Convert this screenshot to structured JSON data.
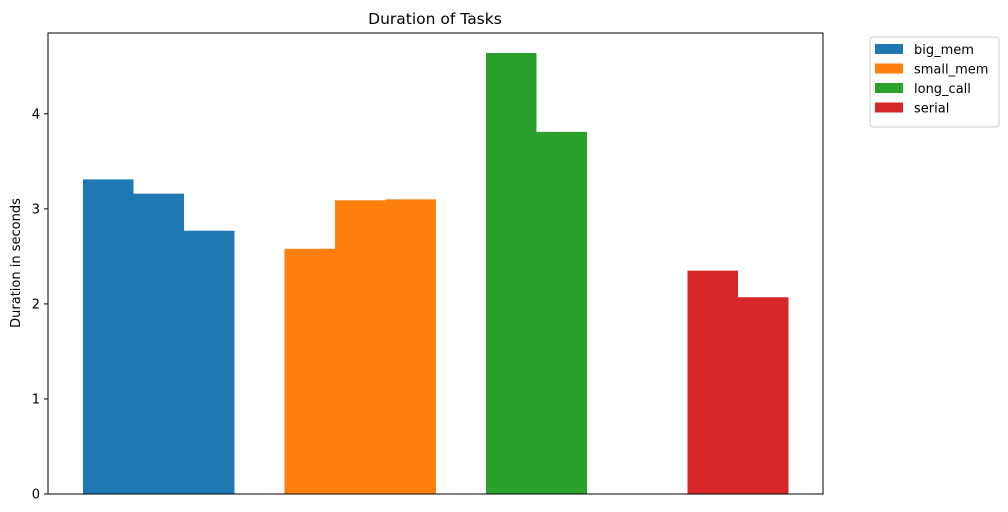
{
  "chart_data": {
    "type": "bar",
    "title": "Duration of Tasks",
    "xlabel": "",
    "ylabel": "Duration in seconds",
    "ylim": [
      0,
      4.85
    ],
    "yticks": [
      0,
      1,
      2,
      3,
      4
    ],
    "grid": false,
    "legend_position": "outside-top-right",
    "series": [
      {
        "name": "big_mem",
        "color": "#1f77b4",
        "values": [
          3.31,
          3.16,
          2.77
        ]
      },
      {
        "name": "small_mem",
        "color": "#ff7f0e",
        "values": [
          2.58,
          3.09,
          3.1
        ]
      },
      {
        "name": "long_call",
        "color": "#2ca02c",
        "values": [
          4.64,
          3.81
        ]
      },
      {
        "name": "serial",
        "color": "#d62728",
        "values": [
          2.35,
          2.07
        ]
      }
    ]
  }
}
